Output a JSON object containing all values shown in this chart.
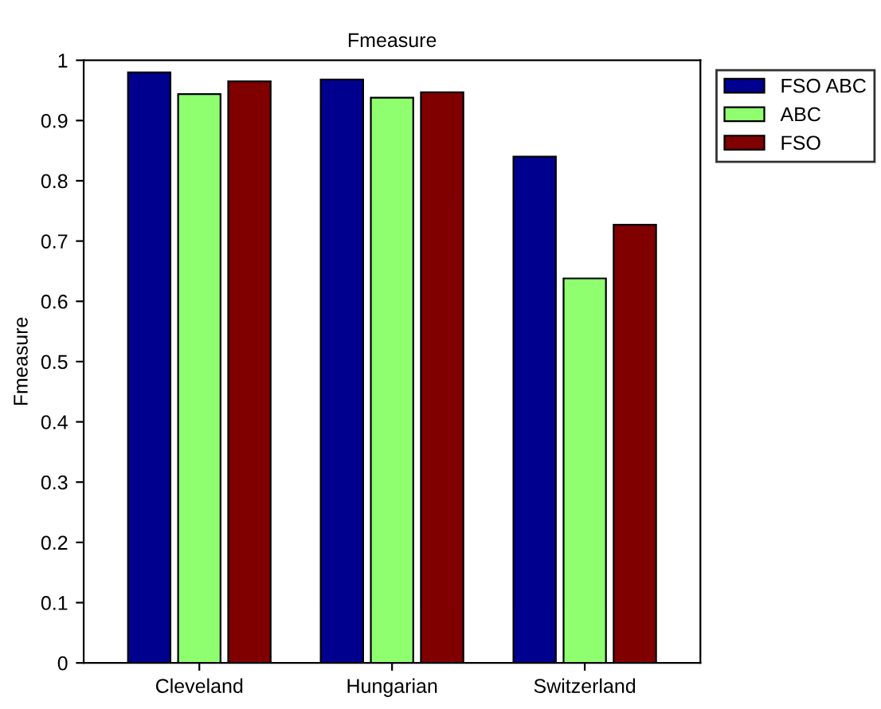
{
  "chart_data": {
    "type": "bar",
    "title": "Fmeasure",
    "ylabel": "Fmeasure",
    "categories": [
      "Cleveland",
      "Hungarian",
      "Switzerland"
    ],
    "series": [
      {
        "name": "FSO ABC",
        "color": "#00008f",
        "values": [
          0.98,
          0.968,
          0.84
        ]
      },
      {
        "name": "ABC",
        "color": "#8fff70",
        "values": [
          0.944,
          0.938,
          0.638
        ]
      },
      {
        "name": "FSO",
        "color": "#800000",
        "values": [
          0.965,
          0.947,
          0.727
        ]
      }
    ],
    "ylim": [
      0,
      1
    ],
    "yticks": [
      0,
      0.1,
      0.2,
      0.3,
      0.4,
      0.5,
      0.6,
      0.7,
      0.8,
      0.9,
      1
    ],
    "grid": false,
    "legend": "top right"
  }
}
